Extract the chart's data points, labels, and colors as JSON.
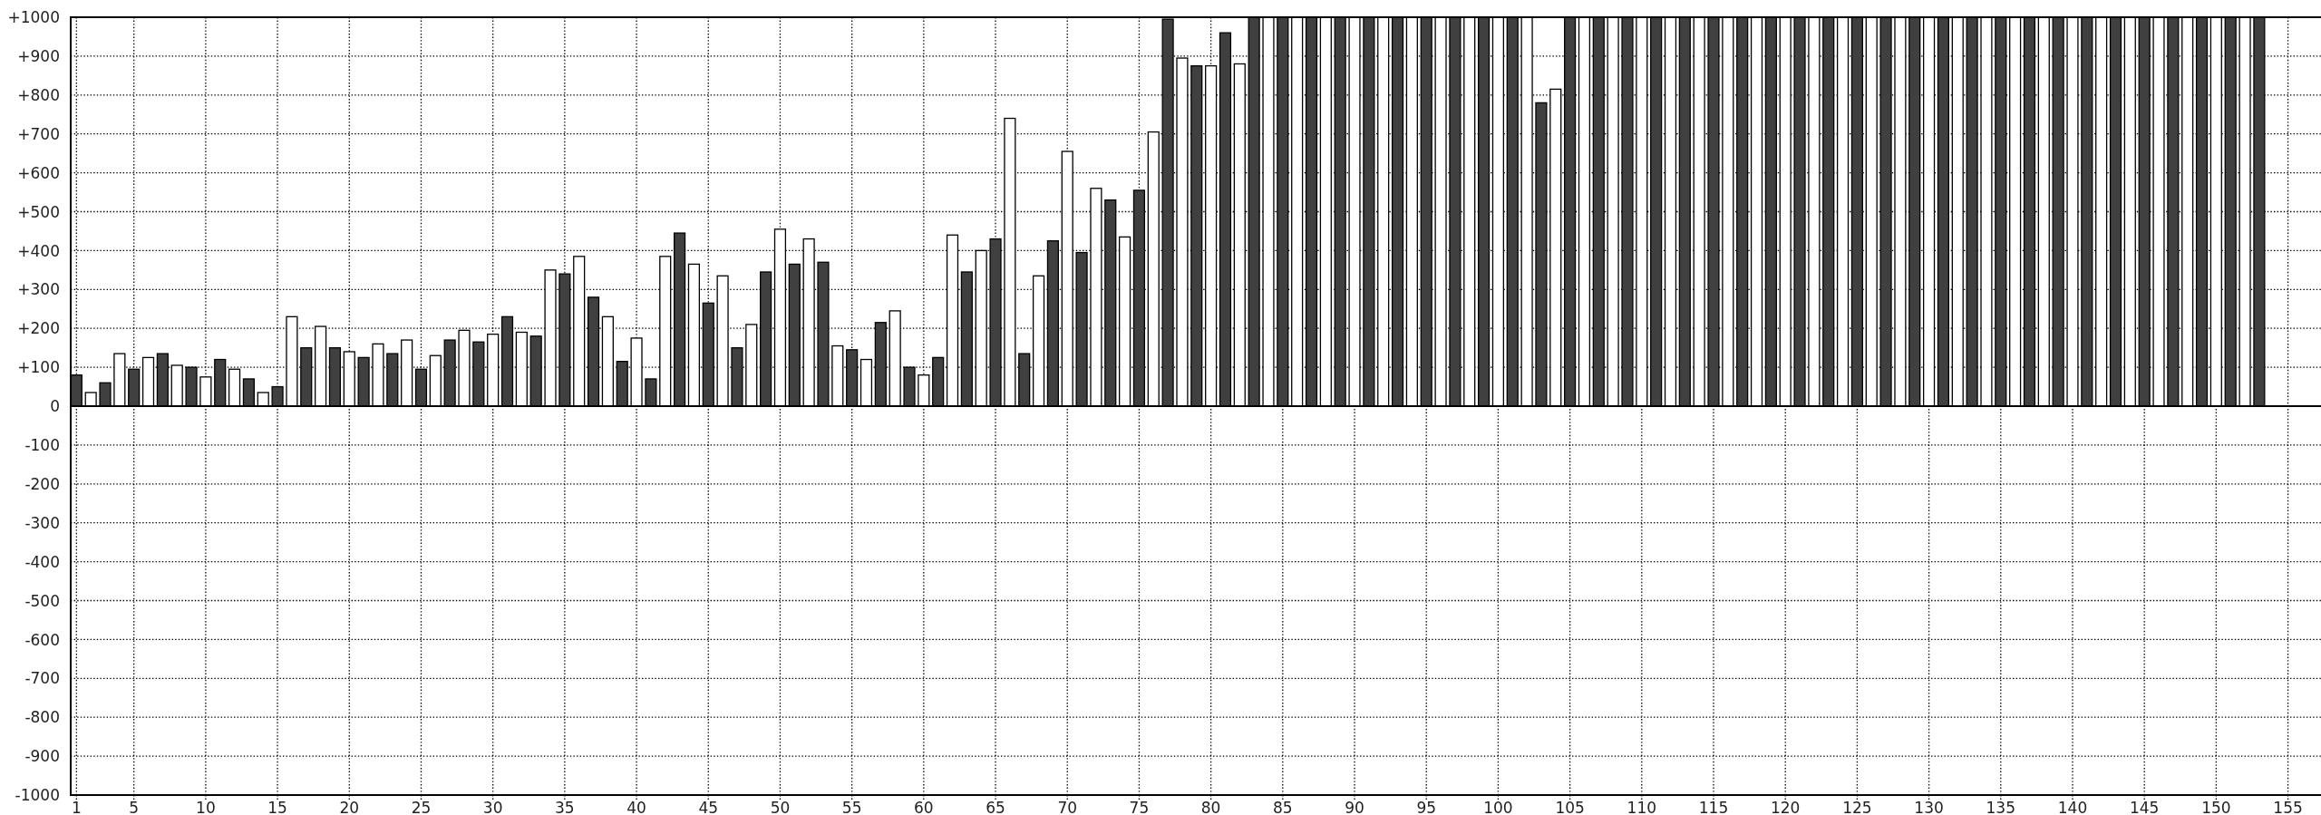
{
  "chart_data": {
    "type": "bar",
    "series": [
      {
        "color": "#404040",
        "x": [
          1,
          3,
          5,
          7,
          9,
          11,
          13,
          15,
          17,
          19,
          21,
          23,
          25,
          27,
          29,
          31,
          33,
          35,
          37,
          39,
          41,
          43,
          45,
          47,
          49,
          51,
          53,
          55,
          57,
          59,
          61,
          63,
          65,
          67,
          69,
          71,
          73,
          75,
          77,
          79,
          81,
          83,
          85,
          87,
          89,
          91,
          93,
          95,
          97,
          99,
          101,
          103,
          105,
          107,
          109,
          111,
          113,
          115,
          117,
          119,
          121,
          123,
          125,
          127,
          129,
          131,
          133,
          135,
          137,
          139,
          141,
          143,
          145,
          147,
          149,
          151,
          153
        ],
        "values": [
          80,
          60,
          95,
          135,
          100,
          120,
          70,
          50,
          150,
          150,
          125,
          135,
          95,
          170,
          165,
          230,
          180,
          340,
          280,
          115,
          70,
          445,
          265,
          150,
          345,
          365,
          370,
          145,
          215,
          100,
          125,
          345,
          430,
          135,
          425,
          395,
          530,
          555,
          995,
          875,
          960,
          1000,
          1000,
          1000,
          1000,
          1000,
          1000,
          1000,
          1000,
          1000,
          1000,
          780,
          1000,
          1000,
          1000,
          1000,
          1000,
          1000,
          1000,
          1000,
          1000,
          1000,
          1000,
          1000,
          1000,
          1000,
          1000,
          1000,
          1000,
          1000,
          1000,
          1000,
          1000,
          1000,
          1000,
          1000,
          1000
        ]
      },
      {
        "color": "#ffffff",
        "x": [
          2,
          4,
          6,
          8,
          10,
          12,
          14,
          16,
          18,
          20,
          22,
          24,
          26,
          28,
          30,
          32,
          34,
          36,
          38,
          40,
          42,
          44,
          46,
          48,
          50,
          52,
          54,
          56,
          58,
          60,
          62,
          64,
          66,
          68,
          70,
          72,
          74,
          76,
          78,
          80,
          82,
          84,
          86,
          88,
          90,
          92,
          94,
          96,
          98,
          100,
          102,
          104,
          106,
          108,
          110,
          112,
          114,
          116,
          118,
          120,
          122,
          124,
          126,
          128,
          130,
          132,
          134,
          136,
          138,
          140,
          142,
          144,
          146,
          148,
          150,
          152
        ],
        "values": [
          35,
          135,
          125,
          105,
          75,
          95,
          35,
          230,
          205,
          140,
          160,
          170,
          130,
          195,
          185,
          190,
          350,
          385,
          230,
          175,
          385,
          365,
          335,
          210,
          455,
          430,
          155,
          120,
          245,
          80,
          440,
          400,
          740,
          335,
          655,
          560,
          435,
          705,
          895,
          875,
          880,
          1000,
          1000,
          1000,
          1000,
          1000,
          1000,
          1000,
          1000,
          1000,
          1000,
          815,
          1000,
          1000,
          1000,
          1000,
          1000,
          1000,
          1000,
          1000,
          1000,
          1000,
          1000,
          1000,
          1000,
          1000,
          1000,
          1000,
          1000,
          1000,
          1000,
          1000,
          1000,
          1000,
          1000,
          1000
        ]
      }
    ],
    "xlim": [
      0.6,
      157.3
    ],
    "xticks": [
      1,
      5,
      10,
      15,
      20,
      25,
      30,
      35,
      40,
      45,
      50,
      55,
      60,
      65,
      70,
      75,
      80,
      85,
      90,
      95,
      100,
      105,
      110,
      115,
      120,
      125,
      130,
      135,
      140,
      145,
      150,
      155
    ],
    "ylim": [
      -1000,
      1000
    ],
    "yticks": [
      {
        "value": 1000,
        "label": "+1000"
      },
      {
        "value": 900,
        "label": "+900"
      },
      {
        "value": 800,
        "label": "+800"
      },
      {
        "value": 700,
        "label": "+700"
      },
      {
        "value": 600,
        "label": "+600"
      },
      {
        "value": 500,
        "label": "+500"
      },
      {
        "value": 400,
        "label": "+400"
      },
      {
        "value": 300,
        "label": "+300"
      },
      {
        "value": 200,
        "label": "+200"
      },
      {
        "value": 100,
        "label": "+100"
      },
      0,
      -100,
      -200,
      -300,
      -400,
      -500,
      -600,
      -700,
      -800,
      -900,
      -1000
    ],
    "grid": true
  }
}
